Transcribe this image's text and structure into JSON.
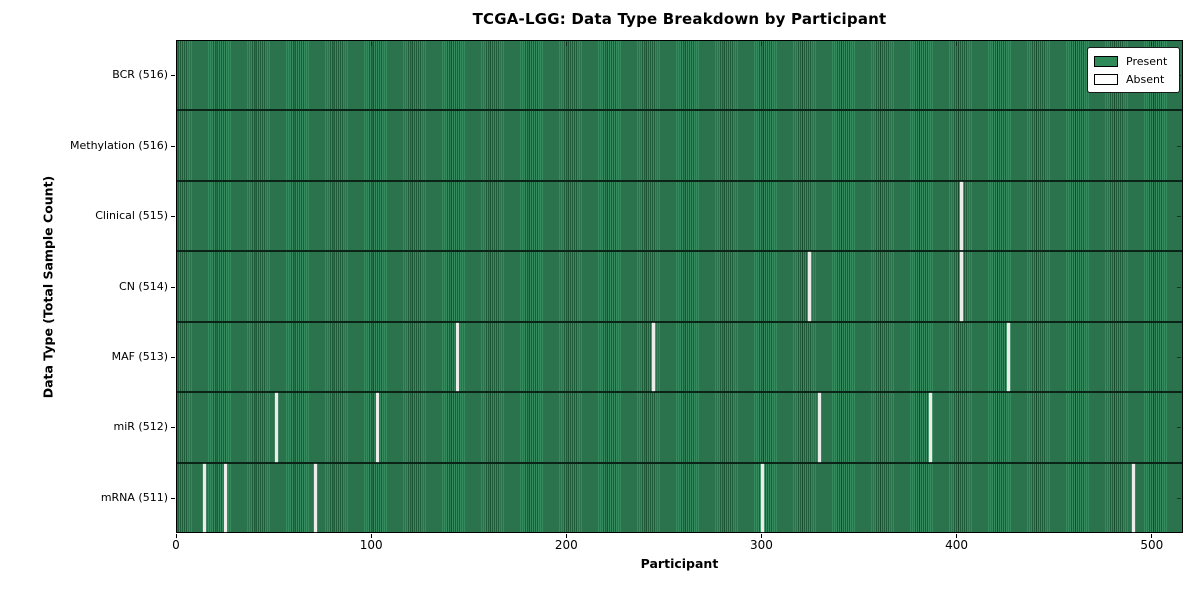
{
  "chart_data": {
    "type": "heatmap",
    "title": "TCGA-LGG: Data Type Breakdown by Participant",
    "xlabel": "Participant",
    "ylabel": "Data Type (Total Sample Count)",
    "n_participants": 516,
    "x_ticks": [
      0,
      100,
      200,
      300,
      400,
      500
    ],
    "xlim": [
      0,
      516
    ],
    "grid": false,
    "legend_position": "upper right",
    "colors": {
      "present": "#2e8b57",
      "absent": "#ffffff",
      "row_divider": "#0c2417"
    },
    "rows": [
      {
        "label": "BCR (516)",
        "data_type": "BCR",
        "total": 516,
        "absent_participants": []
      },
      {
        "label": "Methylation (516)",
        "data_type": "Methylation",
        "total": 516,
        "absent_participants": []
      },
      {
        "label": "Clinical (515)",
        "data_type": "Clinical",
        "total": 515,
        "absent_participants": [
          402
        ]
      },
      {
        "label": "CN (514)",
        "data_type": "CN",
        "total": 514,
        "absent_participants": [
          324,
          402
        ]
      },
      {
        "label": "MAF (513)",
        "data_type": "MAF",
        "total": 513,
        "absent_participants": [
          144,
          244,
          426
        ]
      },
      {
        "label": "miR (512)",
        "data_type": "miR",
        "total": 512,
        "absent_participants": [
          51,
          103,
          329,
          386
        ]
      },
      {
        "label": "mRNA (511)",
        "data_type": "mRNA",
        "total": 511,
        "absent_participants": [
          14,
          25,
          71,
          300,
          490
        ]
      }
    ],
    "legend": [
      {
        "label": "Present",
        "color": "#2e8b57"
      },
      {
        "label": "Absent",
        "color": "#ffffff"
      }
    ]
  }
}
